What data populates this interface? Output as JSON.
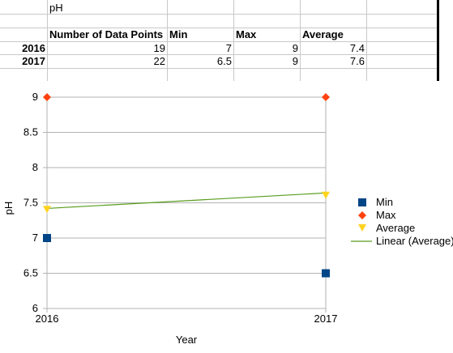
{
  "sheet": {
    "title": "pH",
    "headers": [
      "Number of Data Points",
      "Min",
      "Max",
      "Average"
    ],
    "rows": [
      {
        "label": "2016",
        "cells": [
          "19",
          "7",
          "9",
          "7.4"
        ]
      },
      {
        "label": "2017",
        "cells": [
          "22",
          "6.5",
          "9",
          "7.6"
        ]
      }
    ]
  },
  "chart_data": {
    "type": "scatter",
    "title": "",
    "xlabel": "Year",
    "ylabel": "pH",
    "x": [
      "2016",
      "2017"
    ],
    "ylim": [
      6,
      9
    ],
    "yticks": [
      "6",
      "6.5",
      "7",
      "7.5",
      "8",
      "8.5",
      "9"
    ],
    "grid": true,
    "legend_position": "right",
    "series": [
      {
        "name": "Min",
        "values": [
          7,
          6.5
        ],
        "marker": "square",
        "color": "#004586"
      },
      {
        "name": "Max",
        "values": [
          9,
          9
        ],
        "marker": "diamond",
        "color": "#ff420e"
      },
      {
        "name": "Average",
        "values": [
          7.4,
          7.6
        ],
        "marker": "triangle-down",
        "color": "#ffd320"
      }
    ],
    "trendline": {
      "name": "Linear (Average)",
      "of": "Average",
      "values": [
        7.42,
        7.64
      ],
      "color": "#579d1c"
    }
  }
}
